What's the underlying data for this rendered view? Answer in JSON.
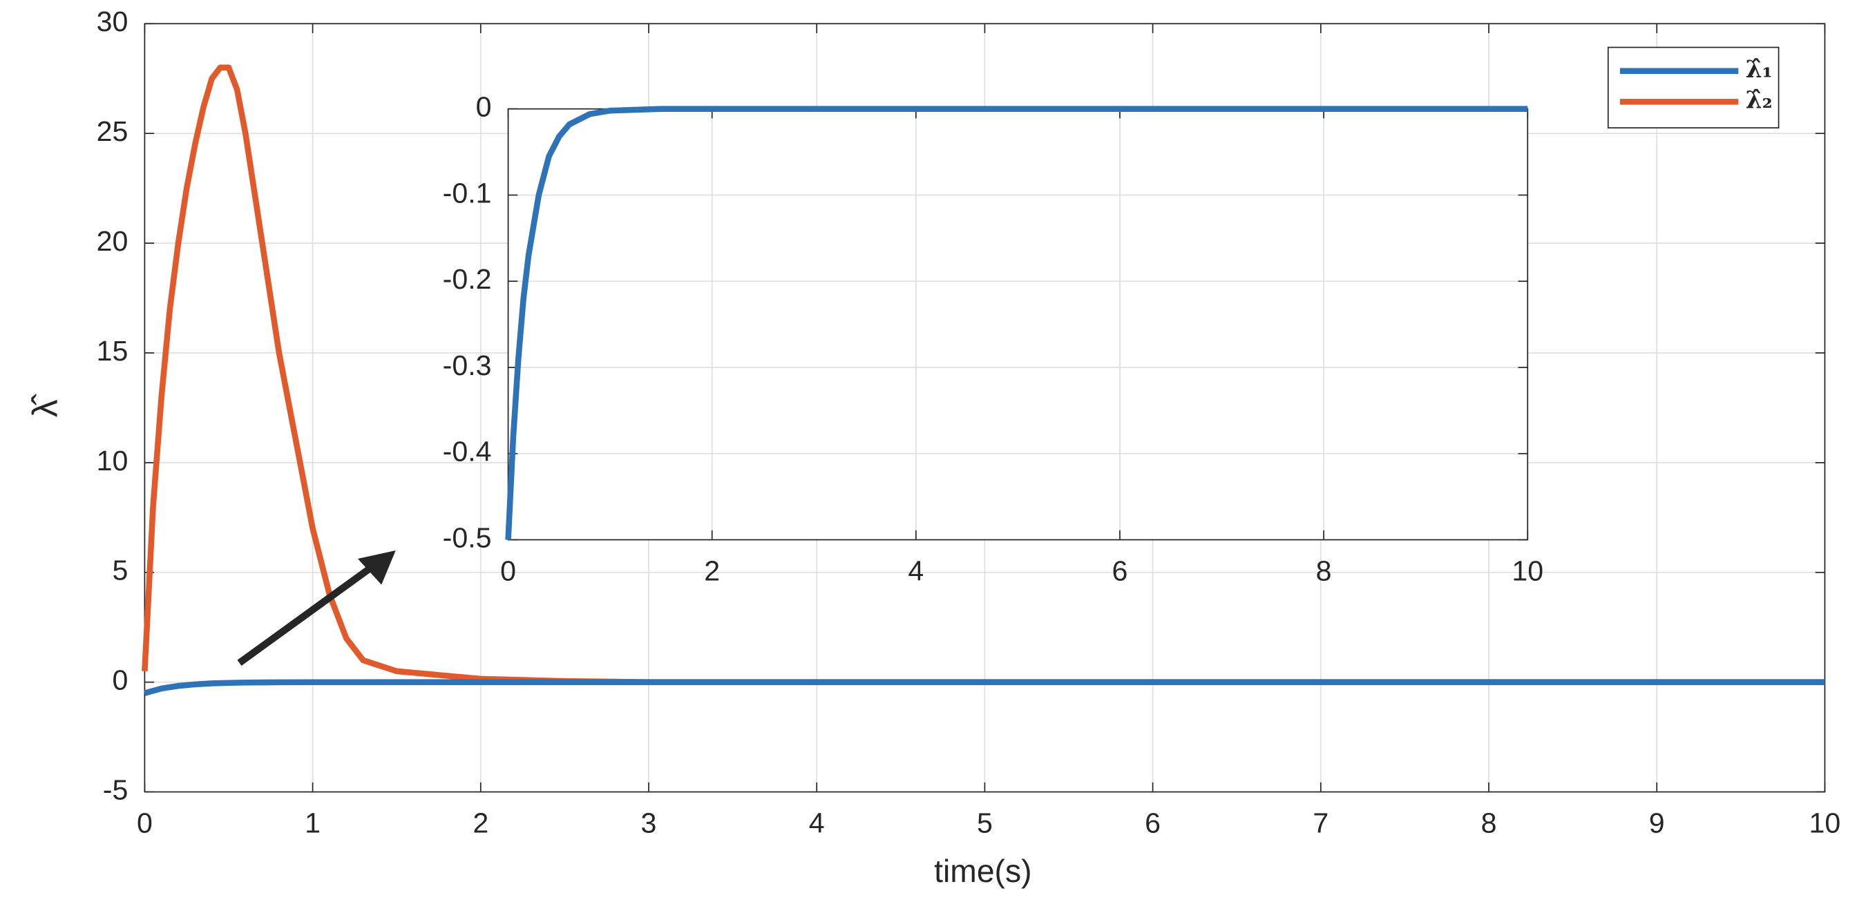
{
  "chart_data": [
    {
      "type": "line",
      "xlabel": "time(s)",
      "ylabel": "λ̂",
      "xlim": [
        0,
        10
      ],
      "ylim": [
        -5,
        30
      ],
      "xticks": [
        0,
        1,
        2,
        3,
        4,
        5,
        6,
        7,
        8,
        9,
        10
      ],
      "yticks": [
        -5,
        0,
        5,
        10,
        15,
        20,
        25,
        30
      ],
      "grid": true,
      "legend": "upper right",
      "series": [
        {
          "name": "λ̂₁",
          "color": "#2e73b8",
          "x": [
            0,
            0.1,
            0.2,
            0.3,
            0.4,
            0.5,
            0.6,
            0.8,
            1,
            1.5,
            2,
            3,
            4,
            5,
            6,
            7,
            8,
            9,
            10
          ],
          "values": [
            -0.5,
            -0.29,
            -0.17,
            -0.1,
            -0.055,
            -0.032,
            -0.018,
            -0.006,
            -0.002,
            0,
            0,
            0,
            0,
            0,
            0,
            0,
            0,
            0,
            0
          ]
        },
        {
          "name": "λ̂₂",
          "color": "#e05a2b",
          "x": [
            0,
            0.05,
            0.1,
            0.15,
            0.2,
            0.25,
            0.3,
            0.35,
            0.4,
            0.45,
            0.5,
            0.55,
            0.6,
            0.7,
            0.8,
            0.9,
            1,
            1.1,
            1.2,
            1.3,
            1.5,
            2,
            2.5,
            3,
            10
          ],
          "values": [
            0.5,
            8,
            13,
            17,
            20,
            22.5,
            24.5,
            26.2,
            27.5,
            28,
            28,
            27,
            25,
            20,
            15,
            11,
            7,
            4,
            2,
            1,
            0.5,
            0.15,
            0.05,
            0,
            0
          ]
        }
      ]
    },
    {
      "type": "line",
      "xlim": [
        0,
        10
      ],
      "ylim": [
        -0.5,
        0
      ],
      "xticks": [
        0,
        2,
        4,
        6,
        8,
        10
      ],
      "yticks": [
        -0.5,
        -0.4,
        -0.3,
        -0.2,
        -0.1,
        0
      ],
      "grid": true,
      "series": [
        {
          "color": "#2e73b8",
          "x": [
            0,
            0.05,
            0.1,
            0.15,
            0.2,
            0.3,
            0.4,
            0.5,
            0.6,
            0.8,
            1,
            1.5,
            2,
            10
          ],
          "values": [
            -0.5,
            -0.38,
            -0.29,
            -0.22,
            -0.17,
            -0.1,
            -0.055,
            -0.032,
            -0.018,
            -0.006,
            -0.002,
            0,
            0,
            0
          ]
        }
      ]
    }
  ]
}
